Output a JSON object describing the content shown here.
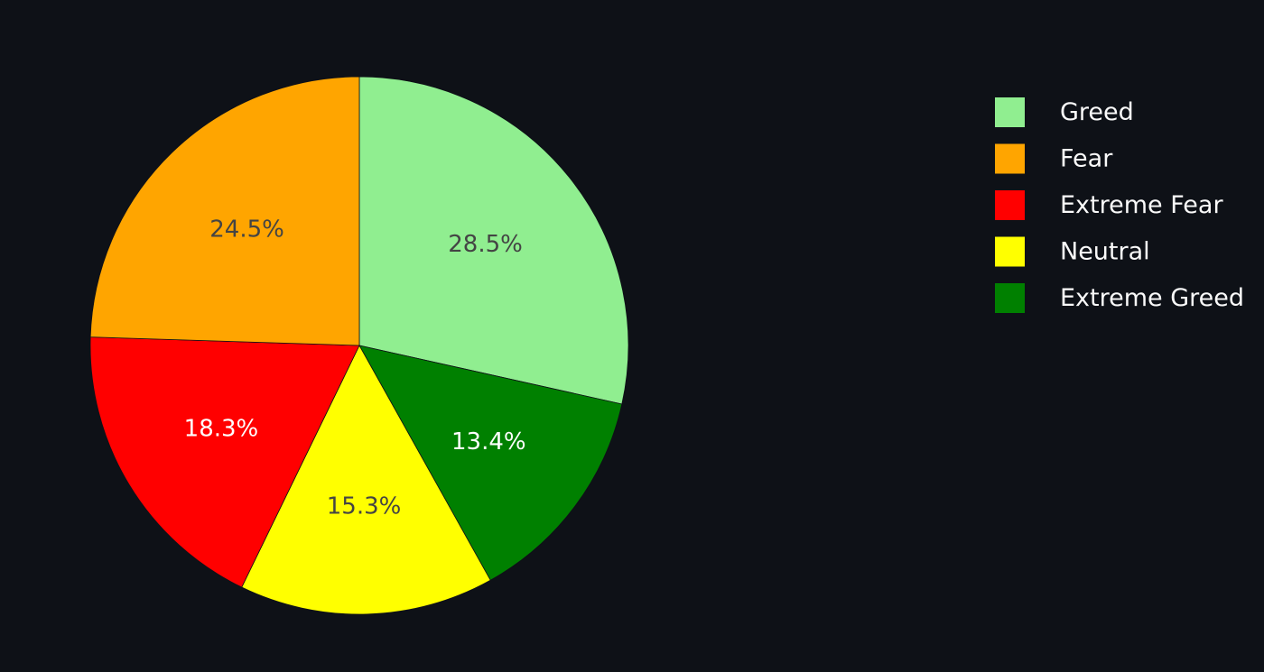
{
  "chart_data": {
    "type": "pie",
    "title": "",
    "categories": [
      "Greed",
      "Fear",
      "Extreme Fear",
      "Neutral",
      "Extreme Greed"
    ],
    "values": [
      28.5,
      24.5,
      18.3,
      15.3,
      13.4
    ],
    "labels": [
      "28.5%",
      "24.5%",
      "18.3%",
      "15.3%",
      "13.4%"
    ],
    "colors": [
      "#90ee90",
      "#ffa500",
      "#ff0000",
      "#ffff00",
      "#008000"
    ],
    "label_colors": [
      "#444444",
      "#444444",
      "#ffffff",
      "#444444",
      "#ffffff"
    ],
    "slice_order_clockwise_from_top": [
      "Greed",
      "Extreme Greed",
      "Neutral",
      "Extreme Fear",
      "Fear"
    ],
    "legend": {
      "placement": "top-right",
      "items": [
        "Greed",
        "Fear",
        "Extreme Fear",
        "Neutral",
        "Extreme Greed"
      ]
    }
  },
  "background_color": "#0e1117"
}
